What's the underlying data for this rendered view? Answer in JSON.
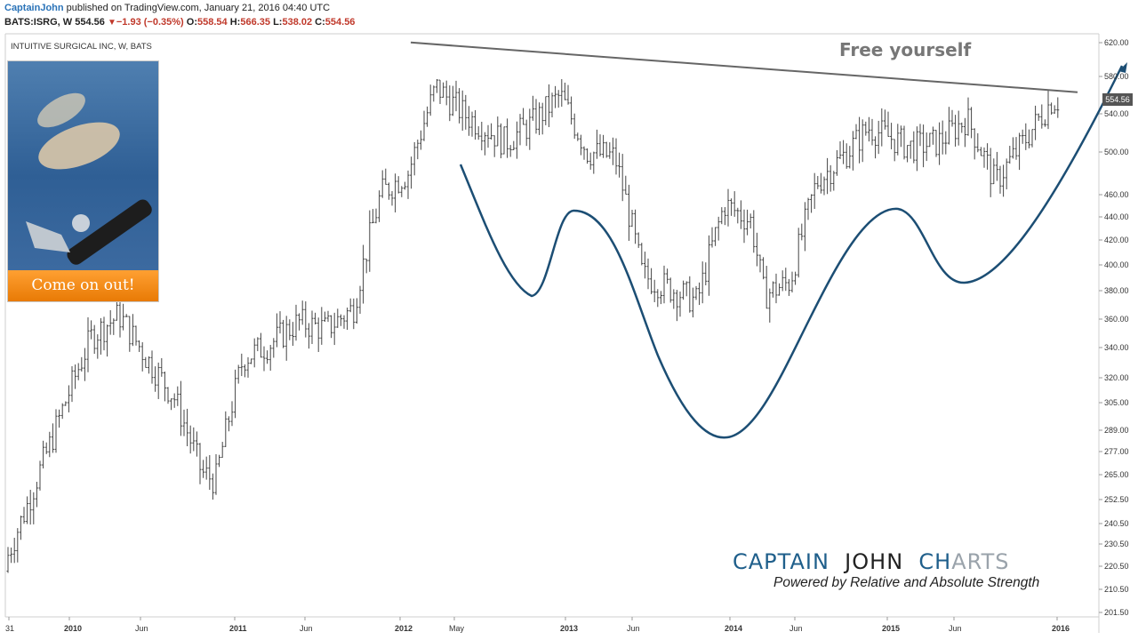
{
  "header": {
    "author": "CaptainJohn",
    "published": " published on TradingView.com, January 21, 2016 04:40 UTC",
    "symbol": "BATS:ISRG, W",
    "last": "554.56",
    "change": "−1.93 (−0.35%)",
    "open": "558.54",
    "high": "566.35",
    "low": "538.02",
    "close": "554.56",
    "open_label": "O:",
    "high_label": "H:",
    "low_label": "L:",
    "close_label": "C:"
  },
  "promo": {
    "button_label": "Come on out!"
  },
  "annotations": {
    "free_yourself": "Free yourself"
  },
  "brand": {
    "word1": "CAPTAIN",
    "word2": "JOHN",
    "word3a": "CH",
    "word3b": "ARTS",
    "subtitle": "Powered by Relative and  Absolute Strength"
  },
  "colors": {
    "accent_blue": "#1f5f8b",
    "curve": "#1c4e74",
    "down": "#c0392b",
    "author": "#2a73b8",
    "bars": "#444444",
    "resistance": "#666666",
    "orange": "#ff8c1a"
  },
  "icons": [
    "promo-photo-hands-icon",
    "surgical-instrument-icon",
    "trend-arrow-icon"
  ],
  "chart_data": {
    "type": "ohlc",
    "title": "INTUITIVE SURGICAL INC, W, BATS",
    "scale": "log",
    "ylim": [
      195,
      630
    ],
    "y_ticks": [
      "620.00",
      "580.00",
      "540.00",
      "500.00",
      "460.00",
      "440.00",
      "420.00",
      "400.00",
      "380.00",
      "360.00",
      "340.00",
      "320.00",
      "305.00",
      "289.00",
      "277.00",
      "265.00",
      "252.50",
      "240.50",
      "230.50",
      "220.50",
      "210.50",
      "201.50"
    ],
    "x_ticks": [
      "31",
      "2010",
      "Jun",
      "2011",
      "Jun",
      "2012",
      "May",
      "2013",
      "Jun",
      "2014",
      "Jun",
      "2015",
      "Jun",
      "2016"
    ],
    "last_price_label": "554.56",
    "series": [
      {
        "name": "ISRG",
        "weekly_close_approx": [
          {
            "date": "2009-08",
            "close": 215
          },
          {
            "date": "2009-10",
            "close": 245
          },
          {
            "date": "2009-12",
            "close": 280
          },
          {
            "date": "2010-03",
            "close": 345
          },
          {
            "date": "2010-05",
            "close": 360
          },
          {
            "date": "2010-07",
            "close": 330
          },
          {
            "date": "2010-09",
            "close": 305
          },
          {
            "date": "2010-11",
            "close": 262
          },
          {
            "date": "2010-12",
            "close": 258
          },
          {
            "date": "2011-02",
            "close": 330
          },
          {
            "date": "2011-04",
            "close": 340
          },
          {
            "date": "2011-06",
            "close": 355
          },
          {
            "date": "2011-08",
            "close": 350
          },
          {
            "date": "2011-10",
            "close": 365
          },
          {
            "date": "2011-12",
            "close": 460
          },
          {
            "date": "2012-02",
            "close": 480
          },
          {
            "date": "2012-04",
            "close": 570
          },
          {
            "date": "2012-06",
            "close": 540
          },
          {
            "date": "2012-09",
            "close": 510
          },
          {
            "date": "2012-11",
            "close": 530
          },
          {
            "date": "2013-01",
            "close": 560
          },
          {
            "date": "2013-03",
            "close": 500
          },
          {
            "date": "2013-05",
            "close": 495
          },
          {
            "date": "2013-07",
            "close": 390
          },
          {
            "date": "2013-09",
            "close": 380
          },
          {
            "date": "2013-11",
            "close": 370
          },
          {
            "date": "2014-01",
            "close": 450
          },
          {
            "date": "2014-03",
            "close": 435
          },
          {
            "date": "2014-04",
            "close": 375
          },
          {
            "date": "2014-06",
            "close": 385
          },
          {
            "date": "2014-08",
            "close": 470
          },
          {
            "date": "2014-10",
            "close": 495
          },
          {
            "date": "2014-12",
            "close": 525
          },
          {
            "date": "2015-03",
            "close": 505
          },
          {
            "date": "2015-05",
            "close": 510
          },
          {
            "date": "2015-07",
            "close": 535
          },
          {
            "date": "2015-09",
            "close": 470
          },
          {
            "date": "2015-11",
            "close": 510
          },
          {
            "date": "2016-01",
            "close": 554.56
          }
        ]
      }
    ],
    "resistance_line": {
      "start": {
        "date": "2012-04",
        "value": 595
      },
      "end": {
        "date": "2016-02",
        "value": 555
      }
    },
    "pattern": "inverse head and shoulders",
    "grid": false,
    "legend": "none"
  }
}
